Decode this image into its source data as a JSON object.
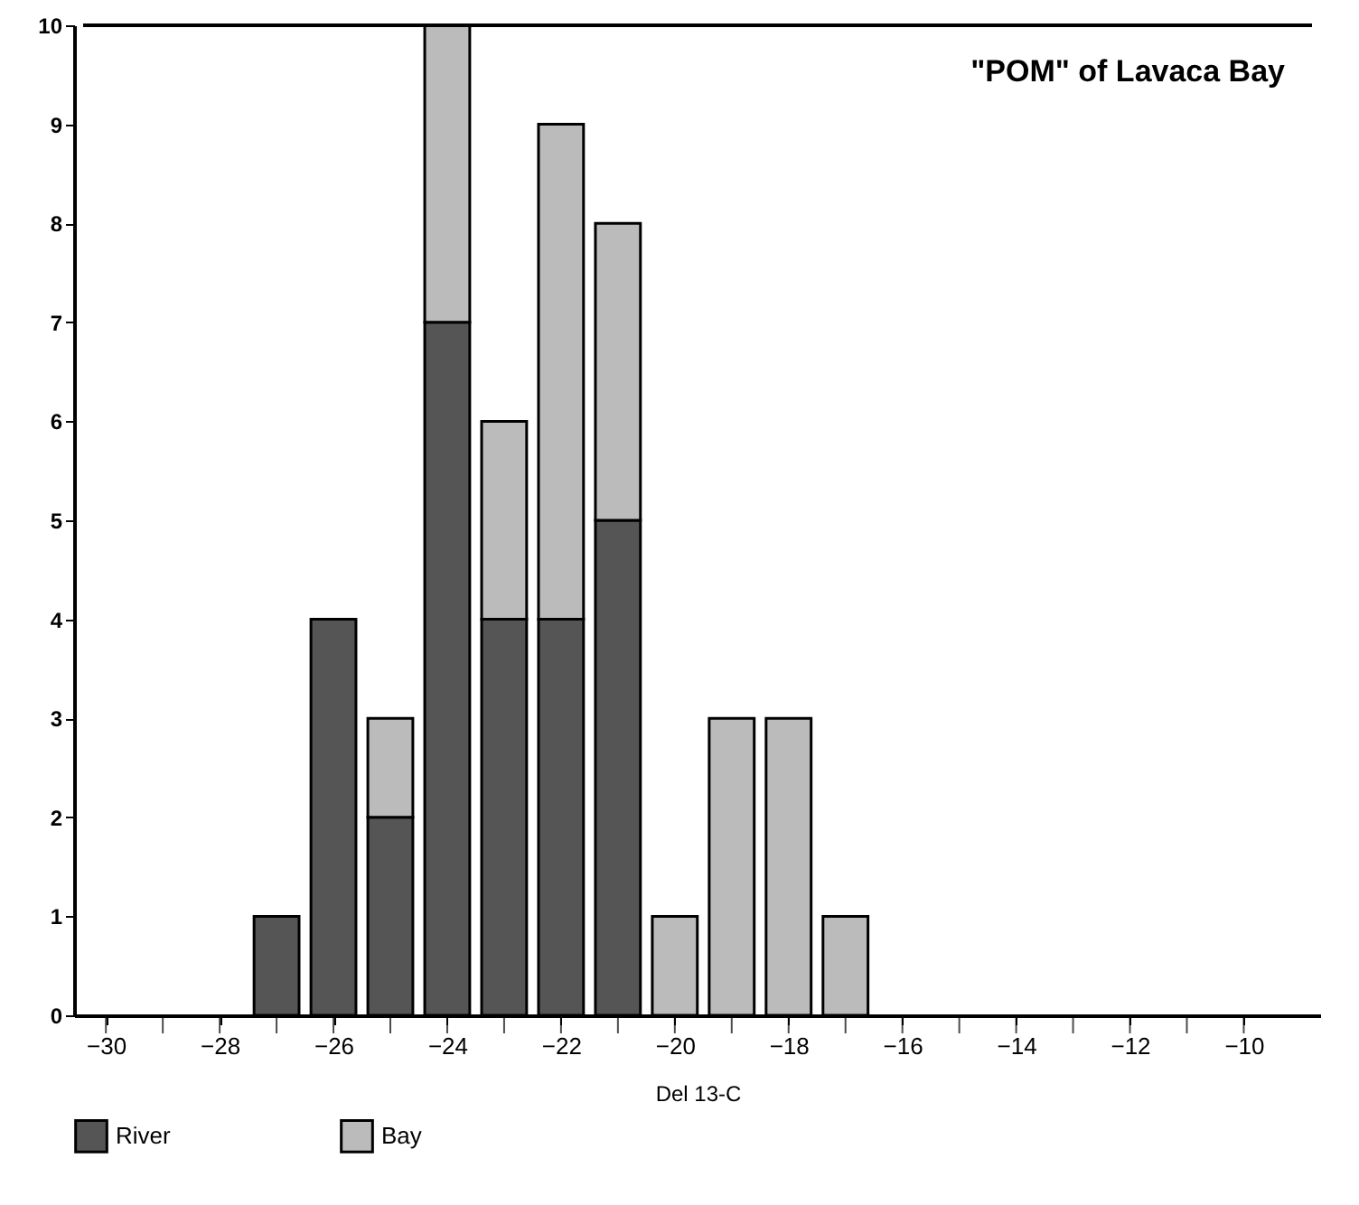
{
  "chart_data": {
    "type": "bar",
    "title": "\"POM\" of Lavaca Bay",
    "xlabel": "Del 13-C",
    "stacked": true,
    "x": [
      -27,
      -26,
      -25,
      -24,
      -23,
      -22,
      -21,
      -20,
      -19,
      -18,
      -17
    ],
    "series": [
      {
        "name": "River",
        "color": "#555555",
        "values": [
          1,
          4,
          2,
          7,
          4,
          4,
          5,
          0,
          0,
          0,
          0
        ]
      },
      {
        "name": "Bay",
        "color": "#bbbbbb",
        "values": [
          0,
          0,
          1,
          3,
          2,
          5,
          3,
          1,
          3,
          3,
          1
        ]
      }
    ],
    "xlim": [
      -30.4,
      -8.8
    ],
    "ylim": [
      0,
      10
    ],
    "xticks": [
      -30,
      {
        "value": -29,
        "label": null
      },
      -28,
      {
        "value": -27,
        "label": null
      },
      -26,
      {
        "value": -25,
        "label": null
      },
      -24,
      {
        "value": -23,
        "label": null
      },
      -22,
      {
        "value": -21,
        "label": null
      },
      -20,
      {
        "value": -19,
        "label": null
      },
      -18,
      {
        "value": -17,
        "label": null
      },
      -16,
      {
        "value": -15,
        "label": null
      },
      -14,
      {
        "value": -13,
        "label": null
      },
      -12,
      {
        "value": -11,
        "label": null
      },
      -10
    ],
    "yticks": [
      0,
      1,
      2,
      3,
      4,
      5,
      6,
      7,
      8,
      9,
      10
    ],
    "grid": false,
    "legend": "bottom"
  }
}
